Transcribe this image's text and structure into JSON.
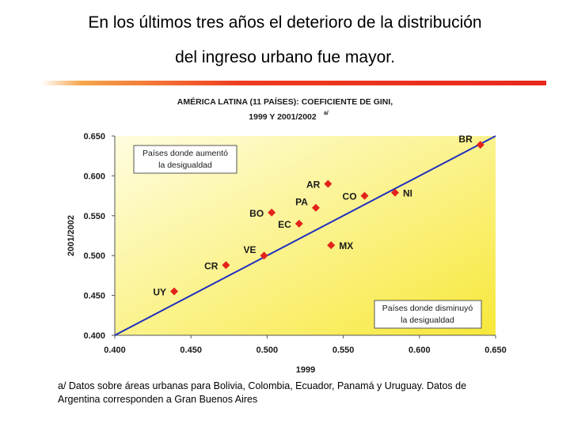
{
  "slide": {
    "title_line1": "En los últimos tres años el deterioro de la distribución",
    "title_line2": "del ingreso urbano fue mayor.",
    "footnote_line1": "a/ Datos sobre áreas urbanas para Bolivia, Colombia, Ecuador, Panamá y Uruguay. Datos de",
    "footnote_line2": "Argentina corresponden a Gran Buenos Aires"
  },
  "colors": {
    "accent_bar": "#e8281c",
    "marker": "#e2231a",
    "diagonal": "#1f2fbf",
    "plot_bg_light": "#fffde0",
    "plot_bg_dark": "#f7e83a",
    "title_text": "#1a1a1a"
  },
  "chart_data": {
    "type": "scatter",
    "title_line1": "AMÉRICA LATINA (11 PAÍSES): COEFICIENTE DE GINI,",
    "title_line2": "1999 Y 2001/2002",
    "title_note": "a/",
    "xlabel": "1999",
    "ylabel": "2001/2002",
    "xlim": [
      0.4,
      0.65
    ],
    "ylim": [
      0.4,
      0.65
    ],
    "xticks": [
      0.4,
      0.45,
      0.5,
      0.55,
      0.6,
      0.65
    ],
    "yticks": [
      0.4,
      0.45,
      0.5,
      0.55,
      0.6,
      0.65
    ],
    "xtick_labels": [
      "0.400",
      "0.450",
      "0.500",
      "0.550",
      "0.600",
      "0.650"
    ],
    "ytick_labels": [
      "0.400",
      "0.450",
      "0.500",
      "0.550",
      "0.600",
      "0.650"
    ],
    "grid": false,
    "reference_line": "y = x",
    "points": [
      {
        "label": "UY",
        "x": 0.439,
        "y": 0.455,
        "label_side": "left"
      },
      {
        "label": "CR",
        "x": 0.473,
        "y": 0.488,
        "label_side": "left"
      },
      {
        "label": "VE",
        "x": 0.498,
        "y": 0.5,
        "label_side": "upper-left"
      },
      {
        "label": "BO",
        "x": 0.503,
        "y": 0.554,
        "label_side": "left"
      },
      {
        "label": "EC",
        "x": 0.521,
        "y": 0.54,
        "label_side": "left"
      },
      {
        "label": "PA",
        "x": 0.532,
        "y": 0.56,
        "label_side": "upper-left"
      },
      {
        "label": "AR",
        "x": 0.54,
        "y": 0.59,
        "label_side": "left"
      },
      {
        "label": "MX",
        "x": 0.542,
        "y": 0.513,
        "label_side": "right"
      },
      {
        "label": "CO",
        "x": 0.564,
        "y": 0.575,
        "label_side": "left"
      },
      {
        "label": "NI",
        "x": 0.584,
        "y": 0.579,
        "label_side": "right"
      },
      {
        "label": "BR",
        "x": 0.64,
        "y": 0.639,
        "label_side": "upper-left"
      }
    ],
    "annotations": [
      {
        "name": "worsened",
        "line1": "Países donde aumentó",
        "line2": "la desigualdad",
        "position": "top-left"
      },
      {
        "name": "improved",
        "line1": "Países donde disminuyó",
        "line2": "la desigualdad",
        "position": "bottom-right"
      }
    ]
  }
}
